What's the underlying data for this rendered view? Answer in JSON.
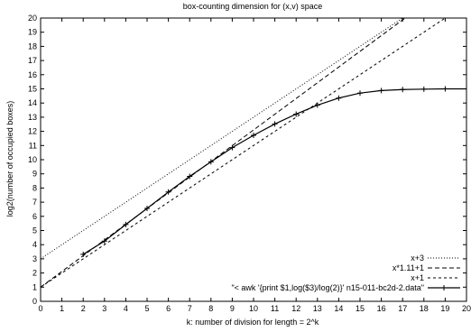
{
  "chart_data": {
    "type": "line",
    "title": "box-counting dimension for (x,v) space",
    "xlabel": "k: number of division for length = 2^k",
    "ylabel": "log2(number of occupied boxes)",
    "xlim": [
      0,
      20
    ],
    "ylim": [
      0,
      20
    ],
    "xticks": [
      "0",
      "1",
      "2",
      "3",
      "4",
      "5",
      "6",
      "7",
      "8",
      "9",
      "10",
      "11",
      "12",
      "13",
      "14",
      "15",
      "16",
      "17",
      "18",
      "19",
      "20"
    ],
    "yticks": [
      "0",
      "1",
      "2",
      "3",
      "4",
      "5",
      "6",
      "7",
      "8",
      "9",
      "10",
      "11",
      "12",
      "13",
      "14",
      "15",
      "16",
      "17",
      "18",
      "19",
      "20"
    ],
    "grid": false,
    "legend_position": "bottom-right",
    "series": [
      {
        "name": "x+3",
        "kind": "function",
        "slope": 1,
        "intercept": 3,
        "style": "dotted",
        "color": "#000000"
      },
      {
        "name": "x*1.11+1",
        "kind": "function",
        "slope": 1.11,
        "intercept": 1,
        "style": "dashed",
        "color": "#000000"
      },
      {
        "name": "x+1",
        "kind": "function",
        "slope": 1,
        "intercept": 1,
        "style": "short-dashed",
        "color": "#000000"
      },
      {
        "name": "\"< awk '{print $1,log($3)/log(2)}' n15-011-bc2d-2.data\"",
        "kind": "data",
        "style": "solid",
        "marker": "plus",
        "color": "#000000",
        "x": [
          2,
          3,
          4,
          5,
          6,
          7,
          8,
          9,
          10,
          11,
          12,
          13,
          14,
          15,
          16,
          17,
          18,
          19,
          20
        ],
        "y": [
          3.32,
          4.25,
          5.42,
          6.56,
          7.72,
          8.82,
          9.85,
          10.85,
          11.72,
          12.52,
          13.22,
          13.85,
          14.35,
          14.7,
          14.88,
          14.95,
          14.98,
          15.0,
          15.0
        ]
      }
    ]
  }
}
